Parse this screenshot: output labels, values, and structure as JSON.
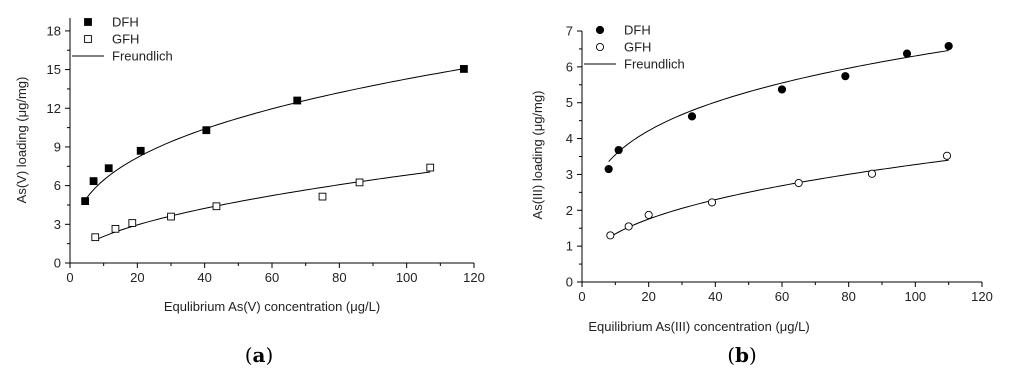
{
  "chart_data": [
    {
      "type": "scatter",
      "panel_label": {
        "open": "(",
        "letter": "a",
        "close": ")"
      },
      "xlabel": "Equlibrium As(V) concentration (μg/L)",
      "ylabel": "As(V) loading (μg/mg)",
      "xlim": [
        0,
        120
      ],
      "ylim": [
        0,
        19
      ],
      "x_ticks": [
        0,
        20,
        40,
        60,
        80,
        100,
        120
      ],
      "y_ticks": [
        0,
        3,
        6,
        9,
        12,
        15,
        18
      ],
      "y_minor_step": 1.5,
      "x_minor_step": 10,
      "grid": false,
      "legend_position": "top-left",
      "series": [
        {
          "name": "DFH",
          "marker": "filled-square",
          "x": [
            4.5,
            7,
            11.5,
            21,
            40.5,
            67.5,
            117
          ],
          "y": [
            4.8,
            6.35,
            7.35,
            8.7,
            10.3,
            12.6,
            15.05
          ]
        },
        {
          "name": "GFH",
          "marker": "open-square",
          "x": [
            7.5,
            13.5,
            18.5,
            30,
            43.5,
            75,
            86,
            107
          ],
          "y": [
            2.0,
            2.65,
            3.1,
            3.6,
            4.4,
            5.15,
            6.25,
            7.4
          ]
        }
      ],
      "fits": [
        {
          "name": "Freundlich",
          "for": "DFH",
          "model": "freundlich",
          "K": 2.9,
          "n_inv": 0.346,
          "x_range": [
            4.5,
            117
          ]
        },
        {
          "name": "Freundlich",
          "for": "GFH",
          "model": "freundlich",
          "K": 0.623,
          "n_inv": 0.5195,
          "x_range": [
            7.5,
            107
          ]
        }
      ],
      "legend": [
        {
          "label": "DFH",
          "marker": "filled-square"
        },
        {
          "label": "GFH",
          "marker": "open-square"
        },
        {
          "label": "Freundlich",
          "marker": "line"
        }
      ]
    },
    {
      "type": "scatter",
      "panel_label": {
        "open": "(",
        "letter": "b",
        "close": ")"
      },
      "xlabel": "Equilibrium As(III) concentration (μg/L)",
      "ylabel": "As(III) loading (μg/mg)",
      "xlim": [
        0,
        120
      ],
      "ylim": [
        0,
        7
      ],
      "x_ticks": [
        0,
        20,
        40,
        60,
        80,
        100,
        120
      ],
      "y_ticks": [
        0,
        1,
        2,
        3,
        4,
        5,
        6,
        7
      ],
      "y_minor_step": 0.5,
      "x_minor_step": 10,
      "grid": false,
      "legend_position": "top-left",
      "series": [
        {
          "name": "DFH",
          "marker": "filled-circle",
          "x": [
            8,
            11,
            33,
            60,
            79,
            97.5,
            110
          ],
          "y": [
            3.15,
            3.68,
            4.62,
            5.37,
            5.74,
            6.37,
            6.58
          ]
        },
        {
          "name": "GFH",
          "marker": "open-circle",
          "x": [
            8.5,
            14,
            20,
            39,
            65,
            87,
            109.5
          ],
          "y": [
            1.3,
            1.55,
            1.87,
            2.22,
            2.76,
            3.02,
            3.52
          ]
        }
      ],
      "fits": [
        {
          "name": "Freundlich",
          "for": "DFH",
          "model": "freundlich",
          "K": 2.0,
          "n_inv": 0.2493,
          "x_range": [
            8,
            110
          ]
        },
        {
          "name": "Freundlich",
          "for": "GFH",
          "model": "freundlich",
          "K": 0.55,
          "n_inv": 0.3874,
          "x_range": [
            8.5,
            110
          ]
        }
      ],
      "legend": [
        {
          "label": "DFH",
          "marker": "filled-circle"
        },
        {
          "label": "GFH",
          "marker": "open-circle"
        },
        {
          "label": "Freundlich",
          "marker": "line"
        }
      ]
    }
  ]
}
